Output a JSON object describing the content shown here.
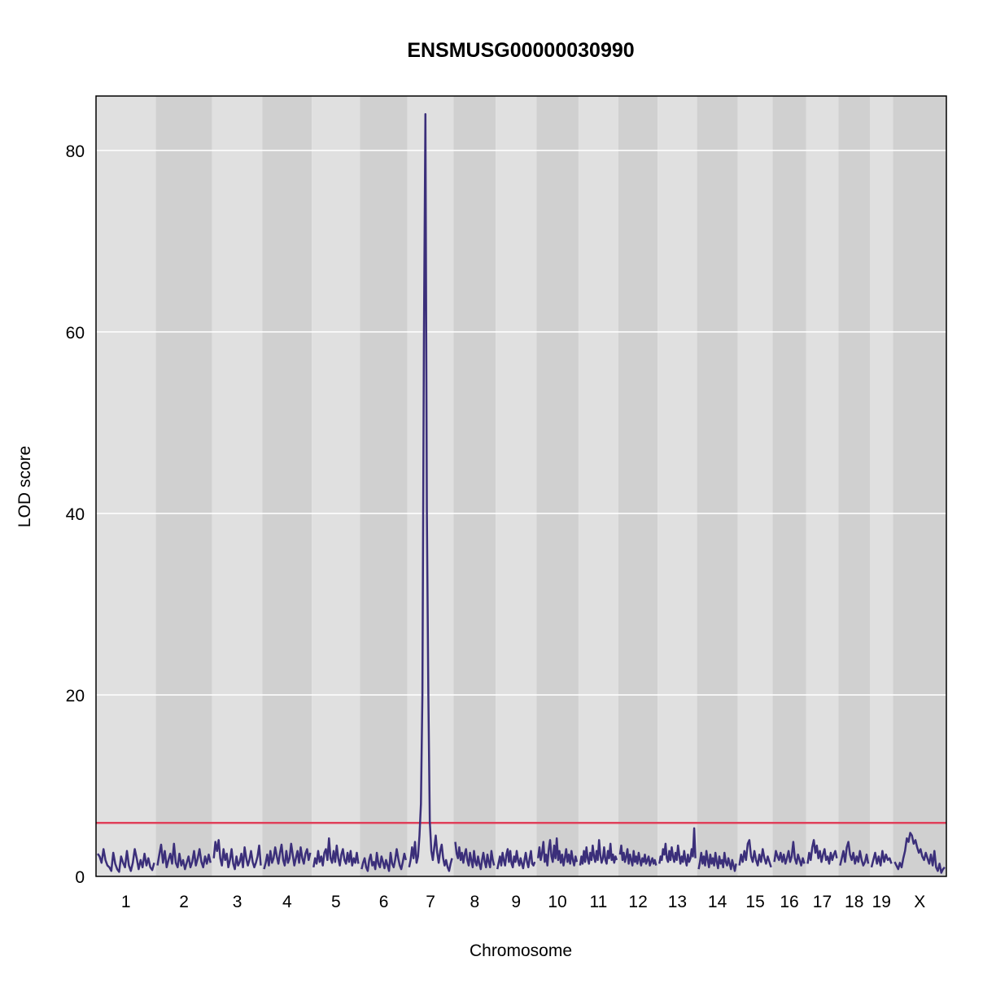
{
  "chart_data": {
    "type": "line",
    "title": "ENSMUSG00000030990",
    "xlabel": "Chromosome",
    "ylabel": "LOD score",
    "ylim": [
      0,
      86
    ],
    "yticks": [
      0,
      20,
      40,
      60,
      80
    ],
    "grid": "horizontal",
    "threshold": {
      "value": 5.9,
      "color": "#e0405a"
    },
    "colors": {
      "line": "#3b2f7a",
      "band_light": "#e0e0e0",
      "band_dark": "#d0d0d0",
      "gridline": "#ffffff",
      "frame": "#000000"
    },
    "chromosomes": [
      {
        "label": "1",
        "length": 195
      },
      {
        "label": "2",
        "length": 182
      },
      {
        "label": "3",
        "length": 160
      },
      {
        "label": "4",
        "length": 157
      },
      {
        "label": "5",
        "length": 152
      },
      {
        "label": "6",
        "length": 150
      },
      {
        "label": "7",
        "length": 145
      },
      {
        "label": "8",
        "length": 130
      },
      {
        "label": "9",
        "length": 125
      },
      {
        "label": "10",
        "length": 130
      },
      {
        "label": "11",
        "length": 122
      },
      {
        "label": "12",
        "length": 120
      },
      {
        "label": "13",
        "length": 120
      },
      {
        "label": "14",
        "length": 125
      },
      {
        "label": "15",
        "length": 104
      },
      {
        "label": "16",
        "length": 98
      },
      {
        "label": "17",
        "length": 95
      },
      {
        "label": "18",
        "length": 91
      },
      {
        "label": "19",
        "length": 61
      },
      {
        "label": "X",
        "length": 171
      }
    ],
    "series": [
      {
        "values": [
          [
            2.5,
            2.2,
            1.5,
            3.0,
            1.8,
            1.2,
            1.0,
            0.6,
            2.6,
            1.4,
            0.8,
            0.5,
            2.2,
            1.5,
            1.0,
            2.8,
            1.2,
            0.6,
            1.5,
            3.0,
            2.0,
            0.8,
            1.8,
            1.0,
            2.5,
            1.2,
            2.0,
            1.0,
            0.7,
            1.5
          ],
          [
            1.2,
            2.4,
            3.5,
            1.5,
            2.8,
            1.0,
            1.8,
            2.5,
            1.4,
            3.6,
            1.5,
            1.0,
            2.5,
            1.2,
            1.8,
            0.8,
            1.5,
            2.2,
            1.0,
            1.6,
            2.8,
            1.2,
            2.0,
            3.0,
            1.6,
            1.0,
            2.2,
            1.4,
            2.4,
            1.5
          ],
          [
            2.0,
            3.8,
            2.8,
            4.0,
            2.0,
            1.2,
            3.0,
            1.8,
            2.5,
            1.0,
            1.8,
            3.0,
            1.4,
            0.8,
            2.2,
            1.2,
            1.6,
            2.5,
            1.0,
            3.2,
            2.0,
            1.2,
            1.8,
            2.8,
            1.6,
            1.0,
            1.5,
            2.2,
            3.4,
            1.2
          ],
          [
            0.8,
            1.5,
            2.4,
            1.2,
            2.8,
            1.5,
            2.0,
            3.2,
            2.2,
            1.4,
            2.6,
            3.5,
            1.8,
            1.2,
            2.8,
            1.5,
            2.0,
            3.6,
            2.4,
            1.2,
            2.0,
            2.8,
            1.5,
            3.2,
            2.0,
            1.4,
            2.5,
            3.0,
            1.8,
            2.6
          ],
          [
            1.0,
            2.0,
            1.4,
            2.8,
            1.6,
            2.2,
            1.2,
            2.6,
            3.0,
            1.8,
            4.2,
            2.0,
            1.5,
            2.8,
            1.6,
            3.4,
            2.0,
            1.2,
            2.4,
            3.0,
            1.8,
            1.4,
            2.6,
            1.6,
            2.8,
            1.2,
            2.0,
            1.5,
            2.6,
            1.4
          ],
          [
            0.8,
            1.5,
            2.0,
            1.0,
            0.6,
            1.8,
            2.4,
            1.2,
            1.6,
            0.8,
            2.6,
            1.4,
            1.0,
            2.2,
            1.6,
            0.9,
            1.8,
            1.2,
            0.6,
            2.6,
            1.4,
            1.0,
            1.8,
            3.0,
            2.0,
            1.2,
            0.8,
            1.6,
            2.5,
            1.8
          ],
          [
            1.0,
            1.8,
            3.2,
            2.0,
            3.8,
            1.5,
            2.2,
            4.5,
            8,
            20,
            60,
            84,
            40,
            20,
            6,
            2.8,
            1.8,
            3.2,
            4.5,
            2.6,
            1.5,
            2.8,
            3.5,
            2.0,
            1.2,
            1.8,
            1.0,
            0.6,
            1.4,
            2.0
          ],
          [
            3.8,
            2.5,
            2.0,
            3.2,
            1.8,
            2.6,
            1.5,
            2.4,
            3.0,
            1.8,
            1.2,
            2.6,
            1.8,
            1.0,
            2.8,
            1.6,
            1.2,
            2.2,
            1.4,
            0.8,
            1.8,
            2.6,
            1.6,
            1.0,
            2.4,
            1.6,
            1.0,
            2.8,
            1.8,
            1.2
          ],
          [
            0.8,
            1.5,
            2.2,
            1.2,
            2.6,
            1.8,
            1.2,
            2.4,
            3.0,
            1.6,
            2.8,
            1.4,
            1.0,
            2.2,
            1.6,
            2.8,
            1.8,
            1.2,
            2.0,
            1.4,
            0.9,
            1.8,
            2.6,
            1.6,
            1.0,
            2.0,
            2.8,
            1.4,
            1.2,
            1.6
          ],
          [
            2.0,
            3.2,
            1.8,
            2.6,
            3.8,
            1.6,
            2.4,
            1.2,
            3.0,
            4.0,
            2.2,
            1.6,
            3.4,
            2.0,
            4.2,
            1.8,
            2.8,
            1.5,
            2.4,
            1.2,
            2.0,
            3.0,
            1.6,
            2.4,
            1.4,
            2.8,
            1.8,
            1.2,
            2.2,
            1.6
          ],
          [
            1.2,
            2.2,
            1.4,
            2.8,
            1.6,
            3.2,
            2.0,
            1.4,
            2.6,
            1.8,
            3.4,
            2.2,
            1.6,
            2.8,
            1.8,
            4.0,
            2.4,
            1.5,
            2.0,
            3.2,
            1.8,
            1.4,
            2.8,
            2.0,
            3.6,
            1.8,
            2.4,
            1.5,
            2.2,
            1.8
          ],
          [
            2.4,
            3.4,
            1.8,
            2.6,
            1.6,
            2.2,
            3.0,
            1.4,
            2.4,
            1.8,
            1.2,
            2.8,
            1.6,
            2.2,
            1.4,
            2.6,
            1.8,
            1.2,
            2.0,
            1.6,
            2.4,
            1.4,
            1.8,
            2.2,
            1.2,
            1.6,
            2.0,
            1.4,
            1.8,
            1.2
          ],
          [
            1.4,
            2.2,
            1.8,
            3.0,
            2.4,
            3.6,
            2.0,
            1.6,
            2.8,
            1.8,
            3.2,
            2.2,
            1.6,
            2.6,
            1.8,
            3.4,
            2.4,
            1.4,
            2.2,
            1.6,
            2.8,
            1.8,
            1.2,
            2.4,
            1.6,
            2.0,
            3.0,
            2.2,
            5.3,
            2.0
          ],
          [
            0.8,
            1.6,
            2.6,
            1.4,
            2.2,
            1.2,
            2.8,
            1.8,
            1.0,
            2.4,
            1.4,
            2.0,
            1.2,
            2.6,
            1.6,
            0.9,
            2.2,
            1.4,
            1.8,
            1.0,
            2.6,
            1.6,
            1.2,
            2.0,
            1.4,
            0.8,
            1.8,
            1.2,
            0.6,
            1.4
          ],
          [
            1.2,
            2.4,
            1.6,
            2.8,
            1.8,
            3.6,
            4.0,
            2.2,
            1.6,
            2.8,
            1.8,
            1.2,
            2.4,
            1.6,
            3.0,
            2.0,
            1.4,
            2.2,
            1.6,
            1.0
          ],
          [
            1.6,
            2.8,
            2.2,
            1.8,
            2.6,
            1.6,
            2.4,
            1.4,
            2.0,
            2.8,
            1.6,
            2.2,
            3.8,
            2.0,
            1.4,
            2.4,
            1.8,
            1.2,
            2.0,
            1.4
          ],
          [
            1.4,
            2.6,
            1.8,
            3.2,
            4.0,
            2.6,
            3.4,
            2.0,
            2.8,
            1.6,
            2.4,
            3.0,
            1.8,
            2.2,
            1.4,
            2.6,
            1.8,
            2.4,
            2.8,
            2.0
          ],
          [
            1.2,
            2.0,
            2.8,
            1.6,
            3.2,
            3.8,
            2.4,
            1.8,
            2.6,
            1.4,
            2.2,
            1.6,
            2.8,
            1.8,
            1.2,
            1.6,
            2.4,
            1.4
          ],
          [
            1.0,
            1.8,
            2.6,
            1.4,
            2.2,
            1.2,
            2.8,
            1.6,
            2.4,
            1.8,
            2.0,
            1.4
          ],
          [
            1.6,
            1.2,
            0.8,
            1.5,
            1.0,
            2.0,
            2.8,
            4.2,
            3.8,
            4.8,
            4.5,
            3.6,
            4.0,
            3.2,
            2.6,
            3.0,
            2.2,
            1.8,
            2.6,
            2.0,
            1.4,
            2.4,
            1.2,
            2.8,
            1.0,
            0.6,
            1.4,
            0.4,
            0.8,
            1.0
          ]
        ]
      }
    ]
  }
}
